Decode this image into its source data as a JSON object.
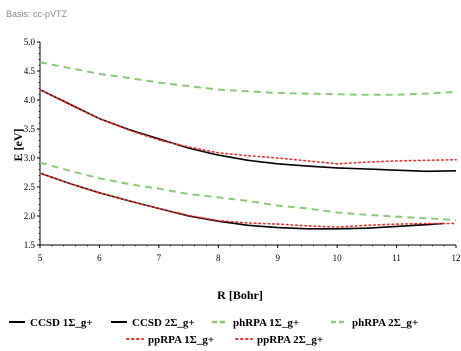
{
  "chart_data": {
    "type": "line",
    "subtitle": "Basis: cc-pVTZ",
    "xlabel": "R [Bohr]",
    "ylabel": "E [eV]",
    "xlim": [
      5,
      12
    ],
    "ylim": [
      1.5,
      5.0
    ],
    "xticks": [
      "5",
      "6",
      "7",
      "8",
      "9",
      "10",
      "11",
      "12"
    ],
    "yticks": [
      "1.5",
      "2.0",
      "2.5",
      "3.0",
      "3.5",
      "4.0",
      "4.5",
      "5.0"
    ],
    "grid": false,
    "legend_position": "bottom",
    "series": [
      {
        "name": "CCSD 1Σ_g+",
        "color": "#000000",
        "style": "solid",
        "x": [
          5,
          5.5,
          6,
          6.5,
          7,
          7.5,
          8,
          8.5,
          9,
          9.5,
          10,
          10.5,
          11,
          11.5,
          11.8
        ],
        "y": [
          2.74,
          2.56,
          2.4,
          2.26,
          2.13,
          2.0,
          1.91,
          1.84,
          1.8,
          1.78,
          1.78,
          1.79,
          1.82,
          1.85,
          1.87
        ]
      },
      {
        "name": "CCSD 2Σ_g+",
        "color": "#000000",
        "style": "solid",
        "x": [
          5,
          5.5,
          6,
          6.5,
          7,
          7.5,
          8,
          8.5,
          9,
          9.5,
          10,
          10.5,
          11,
          11.5,
          12
        ],
        "y": [
          4.18,
          3.93,
          3.68,
          3.49,
          3.33,
          3.17,
          3.05,
          2.96,
          2.9,
          2.86,
          2.83,
          2.81,
          2.79,
          2.77,
          2.78
        ]
      },
      {
        "name": "phRPA 1Σ_g+",
        "color": "#8cc87a",
        "style": "dashed",
        "x": [
          5,
          5.5,
          6,
          6.5,
          7,
          7.5,
          8,
          8.5,
          9,
          9.5,
          10,
          10.5,
          11,
          11.5,
          12
        ],
        "y": [
          4.65,
          4.55,
          4.45,
          4.38,
          4.3,
          4.24,
          4.18,
          4.15,
          4.12,
          4.11,
          4.1,
          4.09,
          4.09,
          4.11,
          4.14
        ]
      },
      {
        "name": "phRPA 2Σ_g+",
        "color": "#8cc87a",
        "style": "dashed",
        "x": [
          5,
          5.5,
          6,
          6.5,
          7,
          7.5,
          8,
          8.5,
          9,
          9.5,
          10,
          10.5,
          11,
          11.5,
          12
        ],
        "y": [
          2.92,
          2.78,
          2.65,
          2.55,
          2.47,
          2.38,
          2.32,
          2.26,
          2.18,
          2.13,
          2.06,
          2.02,
          1.99,
          1.96,
          1.93
        ]
      },
      {
        "name": "ppRPA 1Σ_g+",
        "color": "#e8302a",
        "style": "dotted",
        "x": [
          5,
          5.5,
          6,
          6.5,
          7,
          7.5,
          8,
          8.5,
          9,
          9.5,
          10,
          10.5,
          11,
          11.5,
          12
        ],
        "y": [
          2.74,
          2.56,
          2.4,
          2.26,
          2.13,
          2.01,
          1.92,
          1.88,
          1.86,
          1.83,
          1.81,
          1.84,
          1.86,
          1.87,
          1.87
        ]
      },
      {
        "name": "ppRPA 2Σ_g+",
        "color": "#e8302a",
        "style": "dotted",
        "x": [
          5,
          5.5,
          6,
          6.5,
          7,
          7.5,
          8,
          8.5,
          9,
          9.5,
          10,
          10.5,
          11,
          11.5,
          12
        ],
        "y": [
          4.18,
          3.92,
          3.68,
          3.48,
          3.31,
          3.19,
          3.09,
          3.04,
          3.0,
          2.95,
          2.9,
          2.93,
          2.95,
          2.96,
          2.97
        ]
      }
    ]
  }
}
